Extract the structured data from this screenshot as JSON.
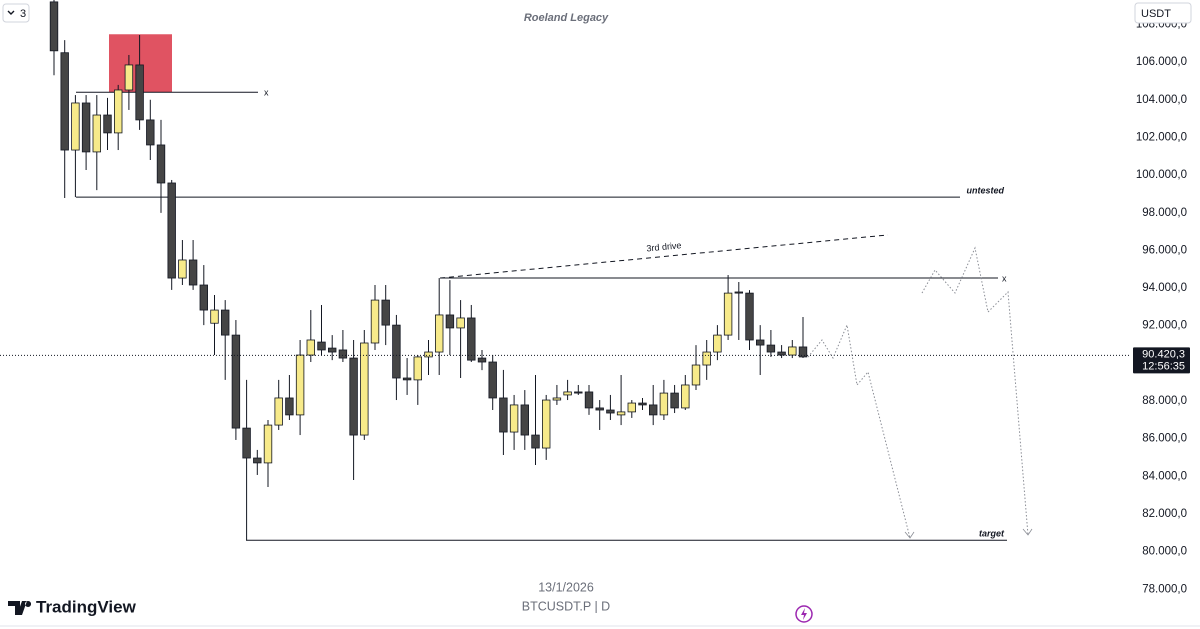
{
  "chart_data": {
    "type": "candlestick",
    "title": "Roeland Legacy",
    "symbol": "BTCUSDT.P | D",
    "date_label": "13/1/2026",
    "brand": "TradingView",
    "currency": "USDT",
    "indicator_count": "3",
    "up_color": "#f7ea8a",
    "down_color": "#454545",
    "grid": false,
    "ylim": [
      76100,
      109300
    ],
    "yticks": [
      {
        "value": 78000,
        "label": "78.000,0"
      },
      {
        "value": 80000,
        "label": "80.000,0"
      },
      {
        "value": 82000,
        "label": "82.000,0"
      },
      {
        "value": 84000,
        "label": "84.000,0"
      },
      {
        "value": 86000,
        "label": "86.000,0"
      },
      {
        "value": 88000,
        "label": "88.000,0"
      },
      {
        "value": 90000,
        "label": "90.000,0"
      },
      {
        "value": 92000,
        "label": "92.000,0"
      },
      {
        "value": 94000,
        "label": "94.000,0"
      },
      {
        "value": 96000,
        "label": "96.000,0"
      },
      {
        "value": 98000,
        "label": "98.000,0"
      },
      {
        "value": 100000,
        "label": "100.000,0"
      },
      {
        "value": 102000,
        "label": "102.000,0"
      },
      {
        "value": 104000,
        "label": "104.000,0"
      },
      {
        "value": 106000,
        "label": "106.000,0"
      },
      {
        "value": 108000,
        "label": "108.000,0"
      }
    ],
    "categories": [
      null,
      null,
      null,
      null,
      null,
      null,
      null,
      null,
      null,
      null,
      null,
      null,
      null,
      null,
      null,
      null,
      null,
      null,
      null,
      null,
      null,
      null,
      null,
      null,
      null,
      null,
      null,
      null,
      null,
      null,
      null,
      null,
      null,
      null,
      null,
      null,
      null,
      null,
      null,
      null,
      null,
      null,
      null,
      null,
      null,
      null,
      null,
      null,
      null,
      null,
      null,
      null,
      null,
      null,
      null,
      null,
      null,
      null,
      null,
      null,
      null,
      null,
      null,
      null,
      null,
      null,
      null,
      null,
      null,
      null,
      null
    ],
    "open": [
      109200,
      106500,
      101330,
      103830,
      101230,
      103190,
      102240,
      104520,
      105850,
      102930,
      101600,
      99580,
      94530,
      95490,
      94160,
      92130,
      92830,
      91500,
      86560,
      84970,
      84710,
      86720,
      88160,
      87260,
      90440,
      91130,
      90810,
      90710,
      90280,
      86190,
      91080,
      93360,
      92030,
      89220,
      89120,
      90340,
      90600,
      92570,
      91880,
      92410,
      90280,
      90070,
      88160,
      86350,
      87790,
      86190,
      85500,
      88050,
      88320,
      88480,
      88480,
      87630,
      87520,
      87260,
      87420,
      87890,
      87790,
      87260,
      88420,
      87630,
      88850,
      89910,
      90600,
      91500,
      93790,
      93730,
      91240,
      90970,
      90600,
      90440,
      90870
    ],
    "high": [
      109300,
      107170,
      104250,
      104250,
      104250,
      104100,
      104790,
      106380,
      107440,
      104000,
      102930,
      99740,
      96550,
      96550,
      95220,
      93630,
      93360,
      92300,
      89120,
      85400,
      86990,
      89120,
      89380,
      91240,
      92830,
      93100,
      91500,
      91770,
      91240,
      91770,
      94160,
      94160,
      92570,
      90280,
      90440,
      91240,
      94530,
      94420,
      93360,
      93100,
      90710,
      90440,
      89650,
      88320,
      88580,
      89380,
      88320,
      88850,
      89120,
      88850,
      88850,
      88050,
      88320,
      89380,
      88050,
      88160,
      88850,
      89120,
      88850,
      89380,
      90970,
      91240,
      92030,
      94690,
      94320,
      93890,
      92030,
      91770,
      90970,
      91240,
      92460
    ],
    "low": [
      105300,
      98780,
      98830,
      100270,
      99200,
      101330,
      101330,
      103460,
      102400,
      100800,
      97990,
      93900,
      94160,
      93900,
      92030,
      90440,
      89120,
      85930,
      80600,
      84070,
      83430,
      86460,
      86990,
      86190,
      90070,
      90440,
      90170,
      90070,
      83800,
      85930,
      90710,
      90970,
      88050,
      88320,
      87790,
      89380,
      89380,
      90440,
      89220,
      90070,
      89640,
      87520,
      85130,
      85400,
      85400,
      84600,
      84870,
      87790,
      88050,
      88320,
      87260,
      86460,
      86990,
      86720,
      87100,
      87520,
      86720,
      86990,
      87360,
      87520,
      88580,
      89120,
      90170,
      91240,
      91240,
      90710,
      89380,
      90340,
      90280,
      90280,
      90280
    ],
    "close": [
      106600,
      101330,
      103830,
      101230,
      103190,
      102240,
      104520,
      105850,
      102930,
      101600,
      99580,
      94530,
      95490,
      94160,
      92830,
      92830,
      91500,
      86560,
      84970,
      84710,
      86720,
      88160,
      87260,
      90440,
      91240,
      90710,
      90600,
      90280,
      86190,
      91080,
      93360,
      92030,
      89220,
      89120,
      90340,
      90600,
      92570,
      91880,
      92410,
      90170,
      90070,
      88160,
      86350,
      87790,
      86190,
      85500,
      88050,
      88160,
      88480,
      88420,
      87630,
      87520,
      87360,
      87420,
      87890,
      87790,
      87260,
      88420,
      87630,
      88850,
      89910,
      90600,
      91500,
      93730,
      93730,
      91240,
      90970,
      90600,
      90440,
      90870,
      90340
    ],
    "zone": [
      104400,
      107480
    ],
    "levels": [
      {
        "value": 104400,
        "label": "x"
      },
      {
        "value": 98830,
        "label": "untested"
      },
      {
        "value": 94530,
        "label": "x"
      },
      {
        "value": 80600,
        "label": "target"
      }
    ],
    "trend": {
      "label": "3rd drive",
      "values": [
        94530,
        96820
      ]
    },
    "last_price": {
      "value": 90420.3,
      "label": "90.420,3"
    },
    "countdown": "12:56:35"
  }
}
